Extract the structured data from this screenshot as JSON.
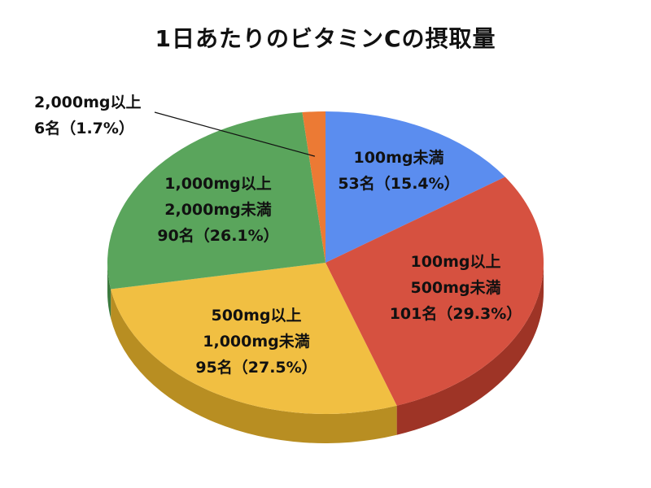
{
  "chart_data": {
    "type": "pie",
    "title": "1日あたりのビタミンCの摂取量",
    "slices": [
      {
        "label_lines": [
          "100mg未満",
          "53名（15.4%）"
        ],
        "count": 53,
        "percent": 15.4,
        "color": "#5b8def",
        "side": "#3b6cc4"
      },
      {
        "label_lines": [
          "100mg以上",
          "500mg未満",
          "101名（29.3%）"
        ],
        "count": 101,
        "percent": 29.3,
        "color": "#d65140",
        "side": "#9e3426"
      },
      {
        "label_lines": [
          "500mg以上",
          "1,000mg未満",
          "95名（27.5%）"
        ],
        "count": 95,
        "percent": 27.5,
        "color": "#f1bf42",
        "side": "#b88e22"
      },
      {
        "label_lines": [
          "1,000mg以上",
          "2,000mg未満",
          "90名（26.1%）"
        ],
        "count": 90,
        "percent": 26.1,
        "color": "#5aa55c",
        "side": "#3c7a3e"
      },
      {
        "label_lines": [
          "2,000mg以上",
          "6名（1.7%）"
        ],
        "count": 6,
        "percent": 1.7,
        "color": "#ec7a34",
        "side": "#b0551f"
      }
    ]
  }
}
